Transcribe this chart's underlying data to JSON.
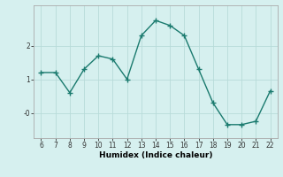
{
  "x": [
    6,
    7,
    8,
    9,
    10,
    11,
    12,
    13,
    14,
    15,
    16,
    17,
    18,
    19,
    20,
    21,
    22
  ],
  "y": [
    1.2,
    1.2,
    0.6,
    1.3,
    1.7,
    1.6,
    1.0,
    2.3,
    2.75,
    2.6,
    2.3,
    1.3,
    0.3,
    -0.35,
    -0.35,
    -0.25,
    0.65
  ],
  "line_color": "#1a7a6e",
  "marker": "+",
  "bg_color": "#d6f0ef",
  "grid_color": "#b8dbd9",
  "xlabel": "Humidex (Indice chaleur)",
  "xticks": [
    6,
    7,
    8,
    9,
    10,
    11,
    12,
    13,
    14,
    15,
    16,
    17,
    18,
    19,
    20,
    21,
    22
  ],
  "yticks": [
    0,
    1,
    2
  ],
  "ytick_labels": [
    "-0",
    "1",
    "2"
  ],
  "ylim": [
    -0.75,
    3.2
  ],
  "xlim": [
    5.5,
    22.5
  ],
  "linewidth": 1.0,
  "markersize": 4,
  "tick_fontsize": 5.5,
  "xlabel_fontsize": 6.5
}
